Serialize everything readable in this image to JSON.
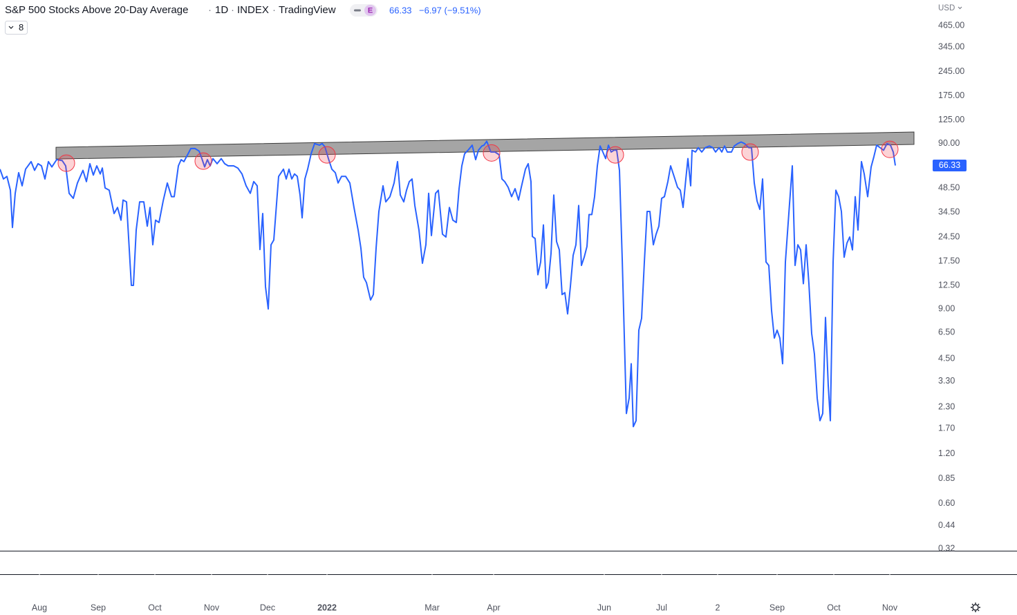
{
  "header": {
    "title": "S&P 500 Stocks Above 20-Day Average",
    "interval": "1D",
    "exchange": "INDEX",
    "source": "TradingView",
    "badge": "E",
    "price": "66.33",
    "change": "−6.97 (−9.51%)",
    "indicator_count": "8",
    "currency": "USD"
  },
  "chart_data": {
    "type": "line",
    "log_scale": true,
    "last_value": 66.33,
    "ylim": [
      0.311,
      664
    ],
    "xlim": [
      0,
      1340
    ],
    "yticks": [
      {
        "value": 465,
        "label": "465.00"
      },
      {
        "value": 345,
        "label": "345.00"
      },
      {
        "value": 245,
        "label": "245.00"
      },
      {
        "value": 175,
        "label": "175.00"
      },
      {
        "value": 125,
        "label": "125.00"
      },
      {
        "value": 90,
        "label": "90.00"
      },
      {
        "value": 48.5,
        "label": "48.50"
      },
      {
        "value": 34.5,
        "label": "34.50"
      },
      {
        "value": 24.5,
        "label": "24.50"
      },
      {
        "value": 17.5,
        "label": "17.50"
      },
      {
        "value": 12.5,
        "label": "12.50"
      },
      {
        "value": 9,
        "label": "9.00"
      },
      {
        "value": 6.5,
        "label": "6.50"
      },
      {
        "value": 4.5,
        "label": "4.50"
      },
      {
        "value": 3.3,
        "label": "3.30"
      },
      {
        "value": 2.3,
        "label": "2.30"
      },
      {
        "value": 1.7,
        "label": "1.70"
      },
      {
        "value": 1.2,
        "label": "1.20"
      },
      {
        "value": 0.85,
        "label": "0.85"
      },
      {
        "value": 0.6,
        "label": "0.60"
      },
      {
        "value": 0.44,
        "label": "0.44"
      },
      {
        "value": 0.32,
        "label": "0.32"
      }
    ],
    "xticks": [
      {
        "value": 57,
        "label": "Aug"
      },
      {
        "value": 142,
        "label": "Sep"
      },
      {
        "value": 224,
        "label": "Oct"
      },
      {
        "value": 306,
        "label": "Nov"
      },
      {
        "value": 387,
        "label": "Dec"
      },
      {
        "value": 473,
        "label": "2022"
      },
      {
        "value": 625,
        "label": "Mar"
      },
      {
        "value": 714,
        "label": "Apr"
      },
      {
        "value": 874,
        "label": "Jun"
      },
      {
        "value": 957,
        "label": "Jul"
      },
      {
        "value": 1038,
        "label": "2"
      },
      {
        "value": 1124,
        "label": "Sep"
      },
      {
        "value": 1206,
        "label": "Oct"
      },
      {
        "value": 1287,
        "label": "Nov"
      }
    ],
    "x": [
      0,
      5,
      10,
      15,
      18,
      22,
      27,
      32,
      37,
      45,
      50,
      55,
      60,
      65,
      70,
      75,
      82,
      90,
      95,
      100,
      106,
      112,
      120,
      125,
      130,
      135,
      140,
      145,
      148,
      152,
      158,
      165,
      170,
      175,
      178,
      183,
      190,
      193,
      197,
      202,
      208,
      213,
      217,
      221,
      225,
      230,
      236,
      242,
      248,
      252,
      258,
      262,
      266,
      272,
      276,
      282,
      288,
      292,
      296,
      300,
      304,
      308,
      314,
      320,
      325,
      330,
      338,
      344,
      350,
      356,
      362,
      367,
      372,
      376,
      380,
      384,
      388,
      392,
      396,
      400,
      403,
      410,
      414,
      418,
      422,
      426,
      430,
      434,
      437,
      441,
      445,
      450,
      455,
      462,
      466,
      470,
      475,
      480,
      485,
      489,
      494,
      500,
      506,
      512,
      518,
      522,
      526,
      530,
      536,
      540,
      544,
      548,
      554,
      558,
      564,
      570,
      575,
      579,
      584,
      588,
      592,
      596,
      600,
      606,
      611,
      616,
      620,
      624,
      630,
      634,
      640,
      645,
      650,
      655,
      660,
      664,
      668,
      672,
      677,
      683,
      688,
      692,
      697,
      700,
      704,
      710,
      716,
      722,
      726,
      730,
      735,
      740,
      745,
      750,
      754,
      760,
      764,
      768,
      770,
      774,
      778,
      782,
      786,
      790,
      793,
      797,
      801,
      805,
      809,
      813,
      817,
      821,
      825,
      829,
      833,
      837,
      841,
      845,
      849,
      852,
      856,
      860,
      864,
      868,
      872,
      876,
      880,
      884,
      888,
      892,
      896,
      900,
      904,
      906,
      910,
      913,
      916,
      920,
      924,
      928,
      932,
      936,
      940,
      945,
      949,
      953,
      957,
      961,
      966,
      970,
      975,
      980,
      984,
      988,
      992,
      995,
      999,
      1001,
      1006,
      1010,
      1015,
      1020,
      1026,
      1031,
      1035,
      1040,
      1044,
      1048,
      1052,
      1058,
      1062,
      1067,
      1072,
      1077,
      1083,
      1087,
      1091,
      1095,
      1099,
      1103,
      1108,
      1112,
      1116,
      1120,
      1124,
      1128,
      1132,
      1136,
      1142,
      1146,
      1150,
      1154,
      1158,
      1162,
      1166,
      1170,
      1174,
      1178,
      1182,
      1186,
      1190,
      1194,
      1198,
      1201,
      1205,
      1209,
      1213,
      1217,
      1221,
      1225,
      1229,
      1233,
      1237,
      1241,
      1246,
      1250,
      1255,
      1260,
      1264,
      1268,
      1273,
      1278,
      1283,
      1288,
      1292,
      1295
    ],
    "series": [
      {
        "color": "#2962ff",
        "values": [
          63,
          55,
          57,
          47,
          28,
          45,
          60,
          50,
          63,
          70,
          62,
          68,
          66,
          55,
          70,
          65,
          72,
          71,
          66,
          45,
          42,
          52,
          62,
          53,
          68,
          58,
          66,
          59,
          64,
          48.5,
          47,
          34,
          37,
          31,
          41,
          40,
          12.5,
          12.5,
          27,
          40,
          40,
          28.5,
          37,
          22,
          31,
          30,
          40.5,
          52,
          43,
          43,
          66,
          72,
          70,
          78,
          84,
          84,
          81,
          73,
          65,
          72,
          66,
          73,
          68,
          73,
          68,
          66,
          66,
          64,
          59,
          50,
          45,
          53,
          50,
          20.6,
          34,
          12.3,
          9,
          22,
          23.5,
          39,
          57,
          63,
          55,
          63,
          55,
          59,
          57,
          44,
          32,
          55,
          63,
          78,
          90,
          88,
          90,
          86,
          73,
          63,
          60,
          52,
          57,
          57,
          52,
          37,
          27,
          21,
          14,
          13,
          10.2,
          11,
          21,
          35,
          50,
          40,
          43,
          52,
          70,
          44,
          40,
          47,
          53,
          55,
          38,
          27,
          17,
          22,
          45,
          25,
          45,
          47,
          25.5,
          24.5,
          37,
          31,
          30,
          48,
          66,
          78,
          82,
          88,
          72,
          82,
          87,
          88,
          93,
          80,
          80,
          77,
          55,
          53,
          49,
          43,
          48,
          41,
          49,
          63,
          68,
          53,
          24.7,
          24,
          14.5,
          17.3,
          29,
          12,
          13,
          19.5,
          44,
          23,
          20.5,
          11,
          11.3,
          8.4,
          12.3,
          19,
          22,
          38,
          16.5,
          18.5,
          21.5,
          33.5,
          33.5,
          43,
          66,
          87,
          80,
          73,
          88,
          80,
          82,
          82,
          62,
          18,
          4.3,
          2.1,
          2.6,
          4.2,
          1.75,
          1.9,
          6.7,
          7.9,
          17.3,
          35,
          35,
          22,
          25.5,
          28.5,
          42,
          43,
          53,
          66,
          57,
          49,
          47,
          37,
          55,
          73,
          50,
          82,
          80,
          85,
          80,
          85,
          87,
          85,
          80,
          85,
          80,
          87,
          80,
          80,
          87,
          90,
          92,
          90,
          85,
          85,
          52,
          40.5,
          36,
          55,
          17.3,
          16.5,
          8.8,
          6,
          6.7,
          6,
          4.2,
          17.3,
          39,
          66,
          16.5,
          22,
          20.5,
          12.8,
          22,
          12.8,
          6.4,
          4.8,
          2.6,
          1.9,
          2.1,
          8,
          3.1,
          1.9,
          17.3,
          47,
          43,
          35,
          18.5,
          22.5,
          24.5,
          20.5,
          43,
          27,
          70,
          59,
          43,
          65,
          75,
          88,
          85,
          82,
          90,
          88,
          80,
          66.33
        ]
      }
    ],
    "channel": {
      "color": "#a5a5a5",
      "x": [
        81,
        1322
      ],
      "upper": [
        85.5,
        105.7
      ],
      "lower": [
        72.6,
        88.9
      ]
    },
    "highlights": {
      "color": "#f23645",
      "x": [
        96,
        294,
        473,
        711,
        890,
        1085,
        1287
      ],
      "y": [
        68.5,
        70.5,
        76.9,
        79,
        76.9,
        80,
        83
      ]
    }
  }
}
